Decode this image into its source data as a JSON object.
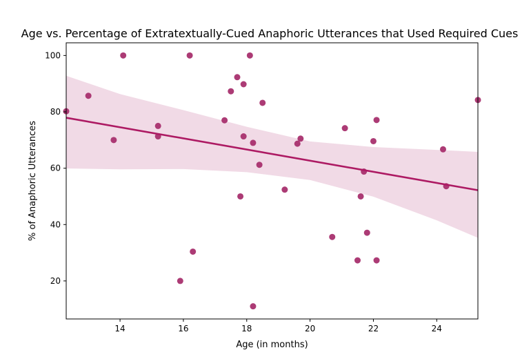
{
  "chart_data": {
    "type": "scatter",
    "title": "Age vs. Percentage of Extratextually-Cued Anaphoric Utterances that Used Required Cues",
    "xlabel": "Age (in months)",
    "ylabel": "% of Anaphoric Utterances",
    "xlim": [
      12.3,
      25.3
    ],
    "ylim": [
      6.5,
      104.5
    ],
    "xticks": [
      14,
      16,
      18,
      20,
      22,
      24
    ],
    "yticks": [
      20,
      40,
      60,
      80,
      100
    ],
    "grid": false,
    "point_color": "#a8306e",
    "line_color": "#ad1a63",
    "band_color": "#f1dae6",
    "points": [
      {
        "x": 12.3,
        "y": 80.2
      },
      {
        "x": 13.0,
        "y": 85.7
      },
      {
        "x": 13.8,
        "y": 70.0
      },
      {
        "x": 14.1,
        "y": 100.0
      },
      {
        "x": 15.2,
        "y": 75.0
      },
      {
        "x": 15.2,
        "y": 71.3
      },
      {
        "x": 15.9,
        "y": 20.0
      },
      {
        "x": 16.2,
        "y": 100.0
      },
      {
        "x": 16.3,
        "y": 30.4
      },
      {
        "x": 17.3,
        "y": 77.0
      },
      {
        "x": 17.5,
        "y": 87.3
      },
      {
        "x": 17.7,
        "y": 92.3
      },
      {
        "x": 17.8,
        "y": 50.0
      },
      {
        "x": 17.9,
        "y": 71.3
      },
      {
        "x": 17.9,
        "y": 89.8
      },
      {
        "x": 18.1,
        "y": 100.0
      },
      {
        "x": 18.2,
        "y": 69.0
      },
      {
        "x": 18.2,
        "y": 11.0
      },
      {
        "x": 18.4,
        "y": 61.2
      },
      {
        "x": 18.5,
        "y": 83.2
      },
      {
        "x": 19.2,
        "y": 52.4
      },
      {
        "x": 19.6,
        "y": 68.7
      },
      {
        "x": 19.7,
        "y": 70.5
      },
      {
        "x": 20.7,
        "y": 35.6
      },
      {
        "x": 21.1,
        "y": 74.2
      },
      {
        "x": 21.5,
        "y": 27.3
      },
      {
        "x": 21.6,
        "y": 50.0
      },
      {
        "x": 21.7,
        "y": 58.8
      },
      {
        "x": 21.8,
        "y": 37.1
      },
      {
        "x": 22.0,
        "y": 69.6
      },
      {
        "x": 22.1,
        "y": 77.1
      },
      {
        "x": 22.1,
        "y": 27.3
      },
      {
        "x": 24.2,
        "y": 66.7
      },
      {
        "x": 24.3,
        "y": 53.6
      },
      {
        "x": 25.3,
        "y": 84.2
      }
    ],
    "regression": {
      "x": [
        12.3,
        25.3
      ],
      "y": [
        77.9,
        52.2
      ]
    },
    "confidence_band": {
      "x": [
        12.3,
        14,
        16,
        18,
        20,
        22,
        24,
        25.3
      ],
      "upper": [
        92.8,
        86.3,
        80.6,
        74.7,
        69.5,
        67.5,
        66.5,
        65.8
      ],
      "lower": [
        59.9,
        59.6,
        59.7,
        58.6,
        55.8,
        49.9,
        41.5,
        35.3
      ]
    }
  }
}
